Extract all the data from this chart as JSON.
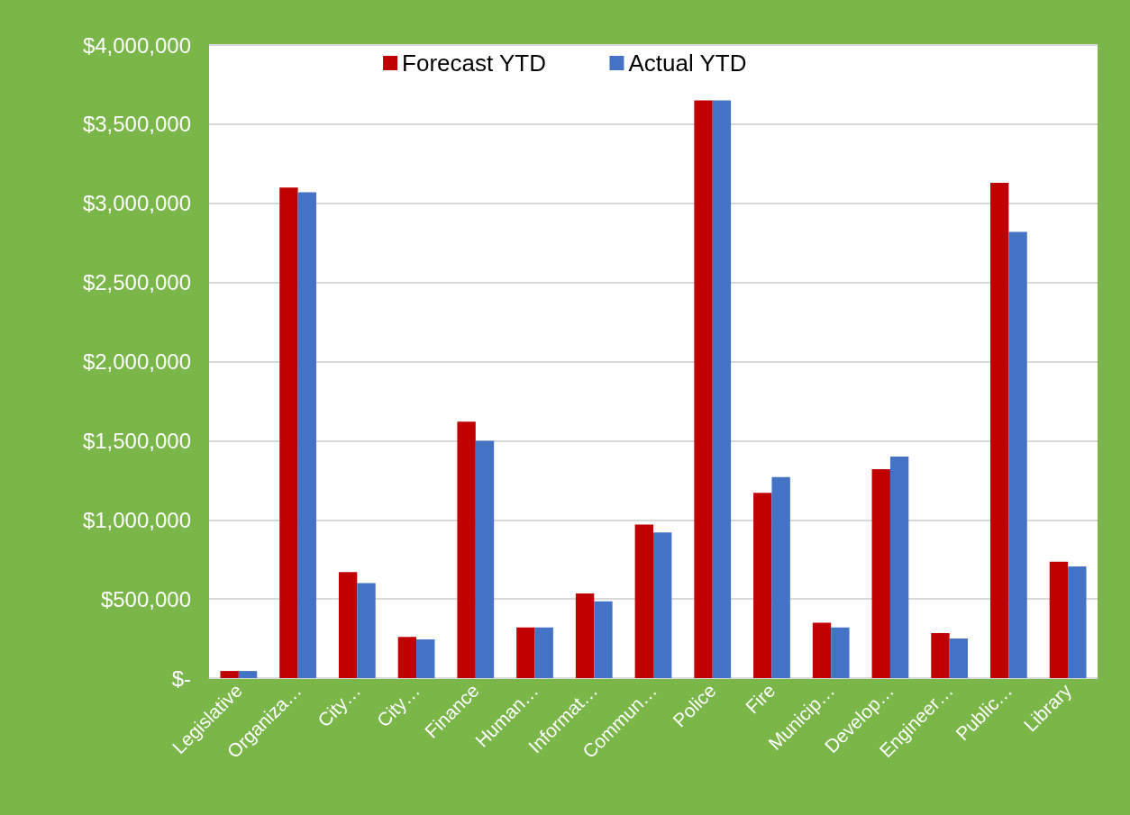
{
  "chart_data": {
    "type": "bar",
    "categories": [
      "Legislative",
      "Organiza…",
      "City…",
      "City…",
      "Finance",
      "Human…",
      "Informat…",
      "Commun…",
      "Police",
      "Fire",
      "Municip…",
      "Develop…",
      "Engineer…",
      "Public…",
      "Library"
    ],
    "series": [
      {
        "name": "Forecast YTD",
        "color": "#c00000",
        "values": [
          45000,
          3100000,
          670000,
          260000,
          1620000,
          320000,
          535000,
          970000,
          3650000,
          1170000,
          350000,
          1320000,
          285000,
          3130000,
          735000
        ]
      },
      {
        "name": "Actual YTD",
        "color": "#4472c4",
        "values": [
          45000,
          3070000,
          600000,
          245000,
          1500000,
          320000,
          485000,
          920000,
          3650000,
          1270000,
          320000,
          1400000,
          250000,
          2820000,
          705000
        ]
      }
    ],
    "ylim": [
      0,
      4000000
    ],
    "yticks": [
      {
        "value": 0,
        "label": "$-"
      },
      {
        "value": 500000,
        "label": "$500,000"
      },
      {
        "value": 1000000,
        "label": "$1,000,000"
      },
      {
        "value": 1500000,
        "label": "$1,500,000"
      },
      {
        "value": 2000000,
        "label": "$2,000,000"
      },
      {
        "value": 2500000,
        "label": "$2,500,000"
      },
      {
        "value": 3000000,
        "label": "$3,000,000"
      },
      {
        "value": 3500000,
        "label": "$3,500,000"
      },
      {
        "value": 4000000,
        "label": "$4,000,000"
      }
    ],
    "grid": "y",
    "legend": "top"
  }
}
